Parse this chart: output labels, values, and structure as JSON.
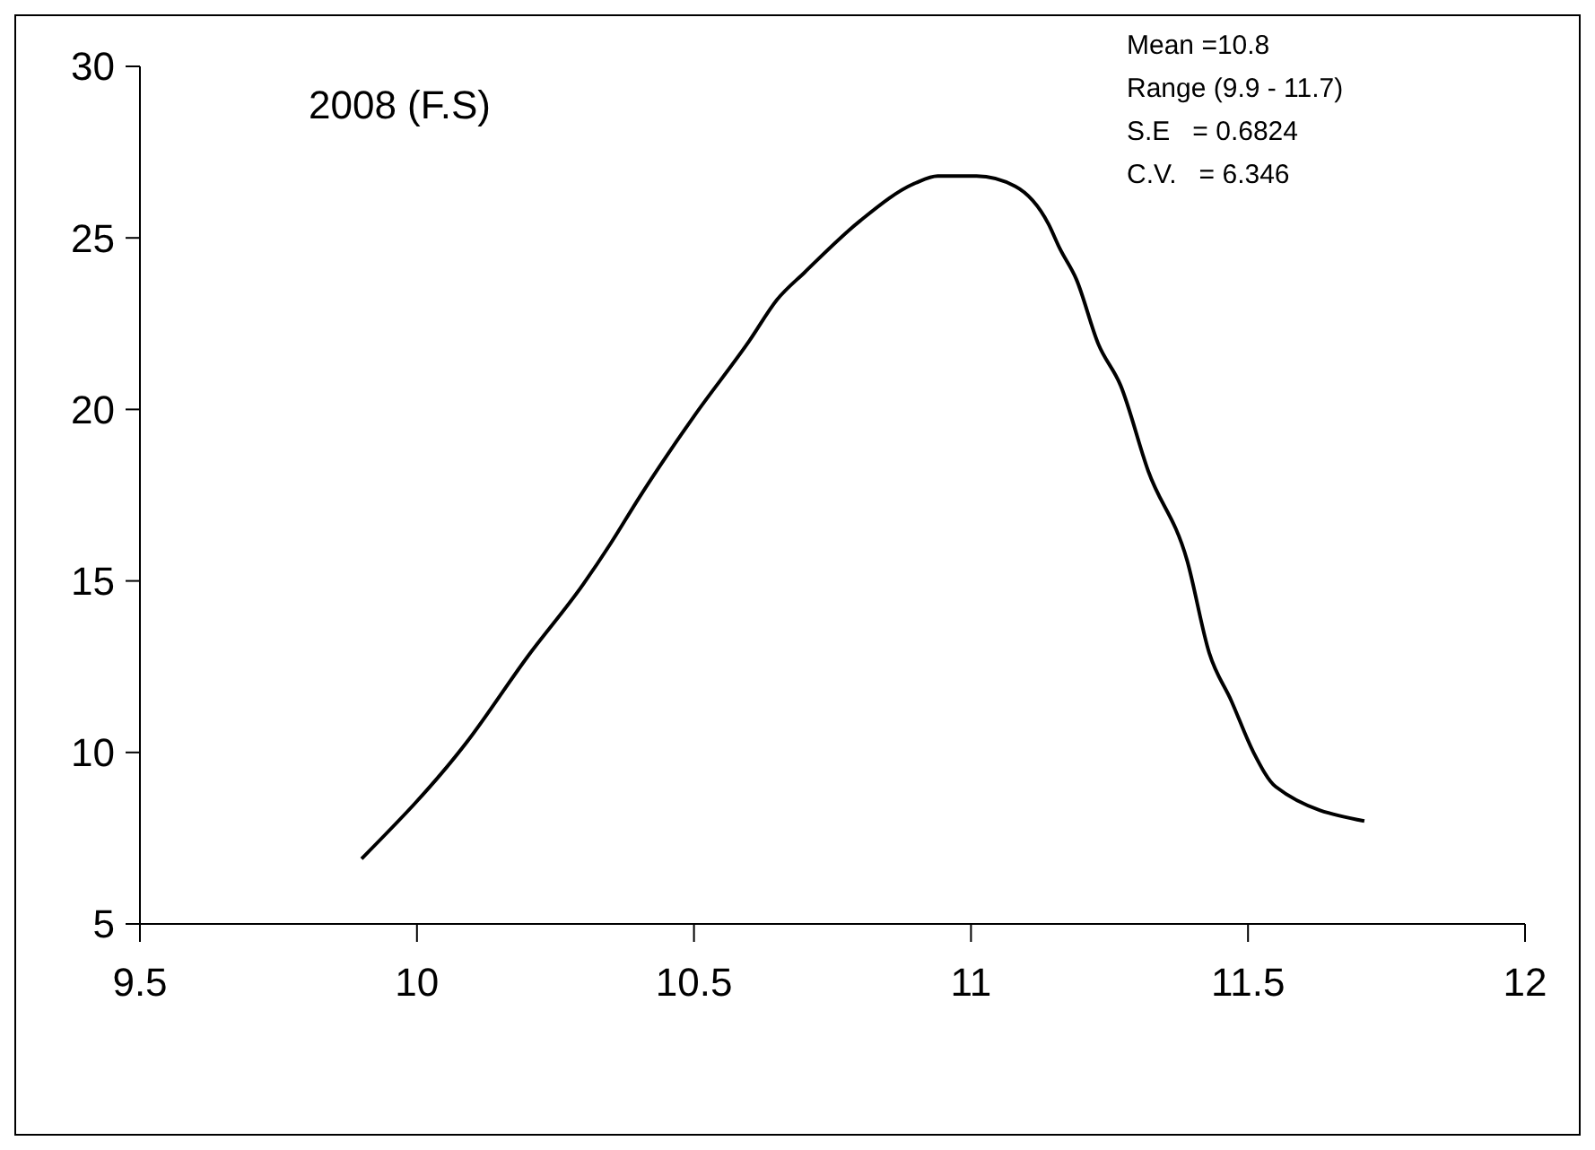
{
  "chart_data": {
    "type": "line",
    "title": "2008 (F.S)",
    "x": [
      9.9,
      10.09,
      10.2,
      10.3,
      10.35,
      10.4,
      10.5,
      10.6,
      10.65,
      10.7,
      10.8,
      10.9,
      10.94,
      11.01,
      11.08,
      11.14,
      11.16,
      11.19,
      11.23,
      11.27,
      11.32,
      11.39,
      11.43,
      11.47,
      11.51,
      11.55,
      11.71
    ],
    "series": [
      {
        "color": "#000000",
        "values": [
          6.9,
          10.3,
          12.8,
          14.9,
          16.1,
          17.4,
          19.8,
          22,
          23.2,
          24,
          25.5,
          26.6,
          26.8,
          26.8,
          26.5,
          25.4,
          24.7,
          23.8,
          21.9,
          20.7,
          18.2,
          15.6,
          12.9,
          11.5,
          10,
          9,
          8
        ]
      }
    ],
    "xlim": [
      9.5,
      12
    ],
    "xticks": [
      9.5,
      10,
      10.5,
      11,
      11.5,
      12
    ],
    "ylim": [
      5,
      30
    ],
    "yticks": [
      5,
      10,
      15,
      20,
      25,
      30
    ],
    "annotations": [
      "Mean =10.8",
      "Range (9.9 - 11.7)",
      "S.E   = 0.6824",
      "C.V.   = 6.346"
    ],
    "grid": false,
    "marker": "none",
    "line_style": "solid"
  }
}
